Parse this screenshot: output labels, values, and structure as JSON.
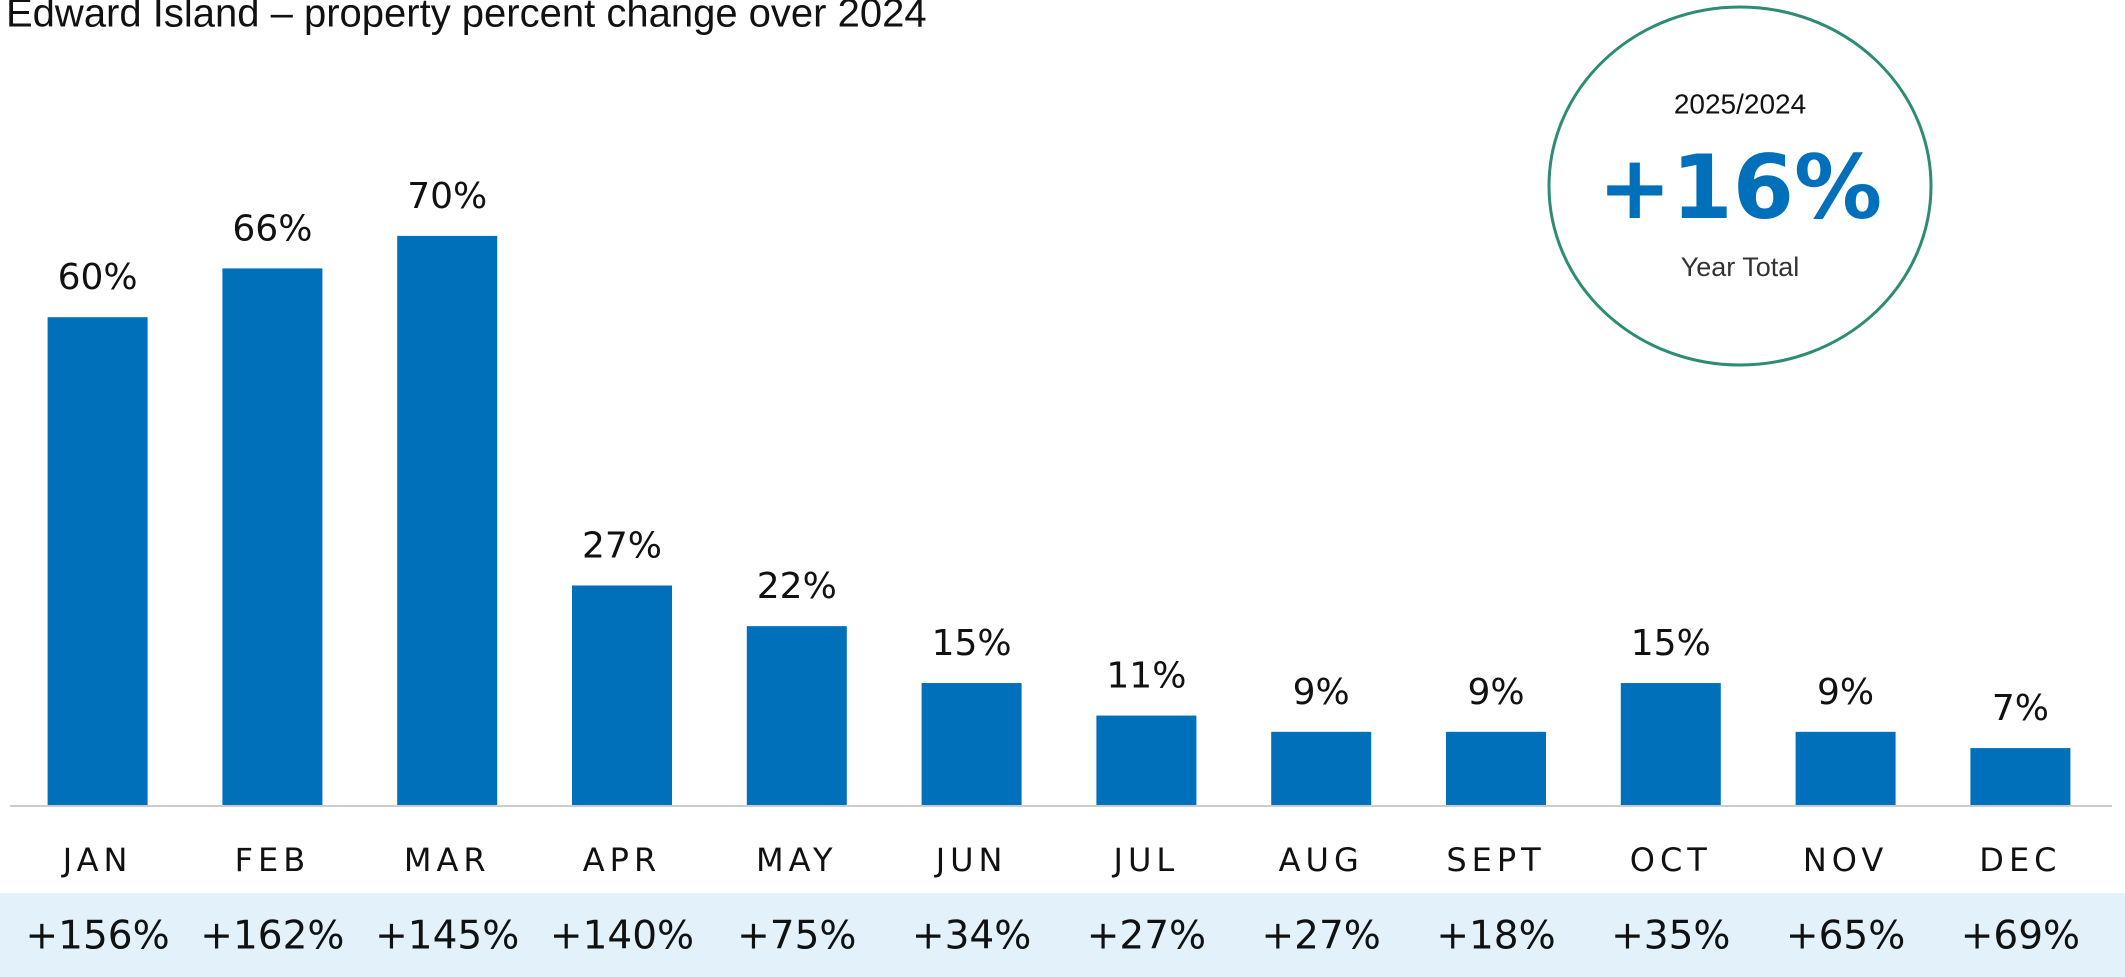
{
  "chart_data": {
    "type": "bar",
    "title": "Edward Island – property percent change over 2024",
    "categories": [
      "JAN",
      "FEB",
      "MAR",
      "APR",
      "MAY",
      "JUN",
      "JUL",
      "AUG",
      "SEPT",
      "OCT",
      "NOV",
      "DEC"
    ],
    "values": [
      60,
      66,
      70,
      27,
      22,
      15,
      11,
      9,
      9,
      15,
      9,
      7
    ],
    "value_labels": [
      "60%",
      "66%",
      "70%",
      "27%",
      "22%",
      "15%",
      "11%",
      "9%",
      "9%",
      "15%",
      "9%",
      "7%"
    ],
    "color": "#0070bb",
    "row_labels": [
      "+156%",
      "+162%",
      "+145%",
      "+140%",
      "+75%",
      "+34%",
      "+27%",
      "+27%",
      "+18%",
      "+35%",
      "+65%",
      "+69%"
    ],
    "callout": {
      "heading": "2025/2024",
      "value": "+16%",
      "caption": "Year Total"
    }
  }
}
